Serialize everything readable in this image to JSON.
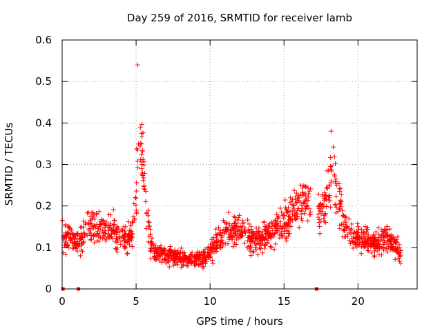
{
  "chart_data": {
    "type": "scatter",
    "title": "Day 259 of 2016, SRMTID for receiver lamb",
    "xlabel": "GPS time / hours",
    "ylabel": "SRMTID / TECUs",
    "xlim": [
      0,
      24
    ],
    "ylim": [
      0,
      0.6
    ],
    "xticks": [
      0,
      5,
      10,
      15,
      20
    ],
    "xtick_labels": [
      "0",
      "5",
      "10",
      "15",
      "20"
    ],
    "yticks": [
      0,
      0.1,
      0.2,
      0.3,
      0.4,
      0.5,
      0.6
    ],
    "ytick_labels": [
      "0",
      "0.1",
      "0.2",
      "0.3",
      "0.4",
      "0.5",
      "0.6"
    ],
    "grid": true,
    "marker": "plus",
    "color": "#ff0000",
    "series": [
      {
        "name": "SRMTID",
        "profile": {
          "x": [
            0.0,
            0.5,
            1.0,
            1.5,
            2.0,
            2.5,
            3.0,
            3.5,
            4.0,
            4.5,
            4.8,
            5.0,
            5.2,
            5.4,
            5.6,
            5.8,
            6.0,
            6.5,
            7.0,
            7.5,
            8.0,
            8.5,
            9.0,
            9.5,
            10.0,
            10.5,
            11.0,
            11.5,
            12.0,
            12.5,
            13.0,
            13.5,
            14.0,
            14.5,
            15.0,
            15.5,
            16.0,
            16.5,
            17.0,
            17.4,
            17.8,
            18.0,
            18.3,
            18.6,
            19.0,
            19.5,
            20.0,
            20.5,
            21.0,
            21.5,
            22.0,
            22.5,
            22.9
          ],
          "y": [
            0.12,
            0.13,
            0.11,
            0.13,
            0.16,
            0.15,
            0.15,
            0.14,
            0.13,
            0.12,
            0.14,
            0.22,
            0.38,
            0.33,
            0.25,
            0.16,
            0.1,
            0.085,
            0.085,
            0.08,
            0.075,
            0.07,
            0.07,
            0.075,
            0.085,
            0.11,
            0.14,
            0.14,
            0.14,
            0.13,
            0.12,
            0.12,
            0.13,
            0.15,
            0.16,
            0.19,
            0.21,
            0.22,
            0.2,
            0.19,
            0.2,
            0.24,
            0.32,
            0.22,
            0.17,
            0.13,
            0.12,
            0.12,
            0.11,
            0.11,
            0.12,
            0.1,
            0.09
          ]
        },
        "data_gaps_hours": [
          [
            16.8,
            17.3
          ]
        ],
        "observed_max": {
          "x": 5.1,
          "y": 0.54
        }
      }
    ],
    "zero_markers_x": [
      0.05,
      1.1,
      17.2
    ]
  }
}
